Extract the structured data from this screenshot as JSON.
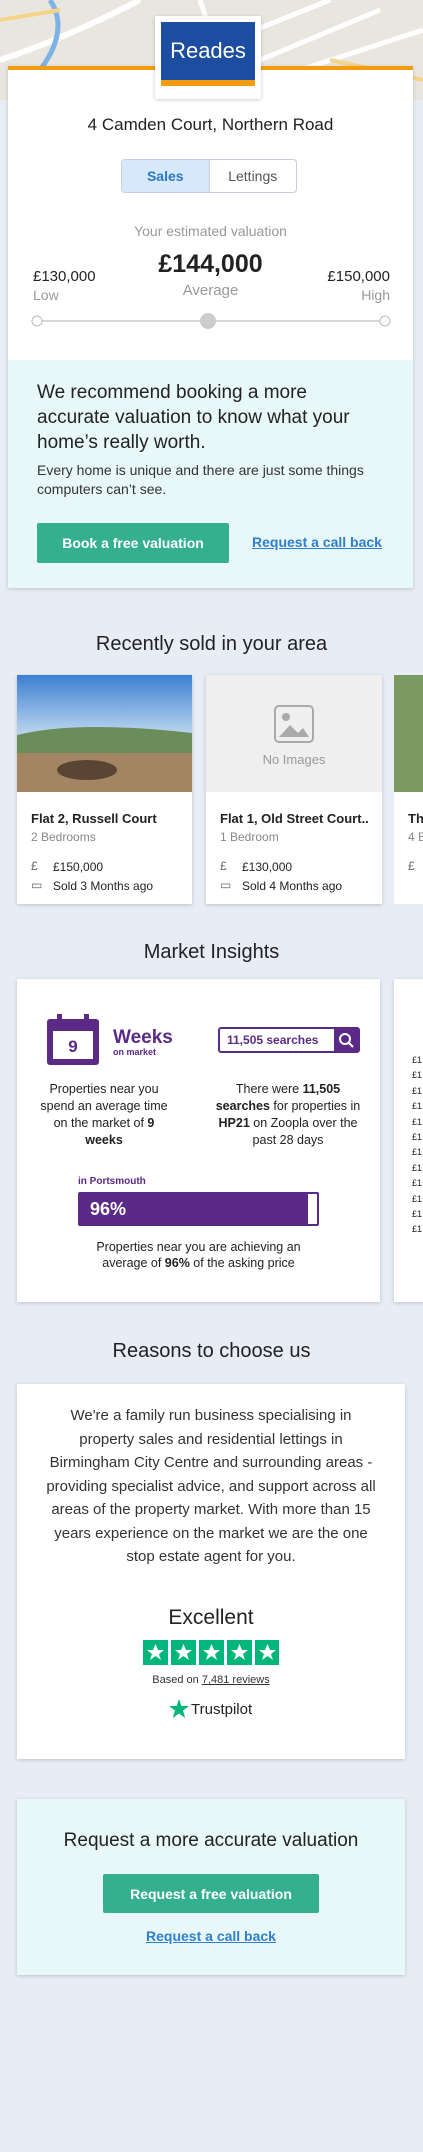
{
  "header": {
    "logo": "Reades"
  },
  "valuation": {
    "address": "4 Camden Court, Northern Road",
    "tabs": [
      "Sales",
      "Lettings"
    ],
    "label": "Your estimated valuation",
    "low": "£130,000",
    "low_label": "Low",
    "average": "£144,000",
    "average_label": "Average",
    "high": "£150,000",
    "high_label": "High"
  },
  "recommend": {
    "heading": "We recommend booking a more accurate valuation to know what your home’s really worth.",
    "body": "Every home is unique and there are just some things computers can’t see.",
    "button": "Book a free valuation",
    "link": "Request a call back"
  },
  "recent": {
    "title": "Recently sold in your area",
    "cards": [
      {
        "title": "Flat 2, Russell Court",
        "subtitle": "2 Bedrooms",
        "price": "£150,000",
        "sold": "Sold 3 Months ago"
      },
      {
        "title": "Flat 1, Old Street Court..",
        "subtitle": "1 Bedroom",
        "price": "£130,000",
        "sold": "Sold 4 Months ago",
        "placeholder": "No Images"
      },
      {
        "title": "Th",
        "subtitle": "4 B",
        "price": "£"
      }
    ]
  },
  "insights": {
    "title": "Market Insights",
    "calendar_number": "9",
    "weeks": "Weeks",
    "on_market": "on market",
    "time_text": [
      "Properties near you spend an average time on the market of ",
      "9 weeks"
    ],
    "searches_badge": "11,505 searches",
    "search_text": [
      "There were ",
      "11,505 searches",
      " for properties in ",
      "HP21",
      " on Zoopla over the past 28 days"
    ],
    "region": "in Portsmouth",
    "percent": "96%",
    "asking_text": [
      "Properties near you are achieving an average of ",
      "96%",
      " of the asking price"
    ],
    "partial_lines": [
      "£1",
      "£1",
      "£1",
      "£1",
      "£1",
      "£1",
      "£1",
      "£1",
      "£1",
      "£1",
      "£1",
      "£1"
    ]
  },
  "reasons": {
    "title": "Reasons to choose us",
    "body": "We're a family run business specialising in property sales and residential lettings in Birmingham City Centre and surrounding areas - providing specialist advice, and support across all areas of the property market. With more than 15 years experience on the market we are the one stop estate agent for you.",
    "rating": "Excellent",
    "based_on": "Based on ",
    "reviews": "7,481 reviews",
    "brand": "Trustpilot"
  },
  "request": {
    "heading": "Request a more accurate valuation",
    "button": "Request a free valuation",
    "link": "Request a call back"
  }
}
